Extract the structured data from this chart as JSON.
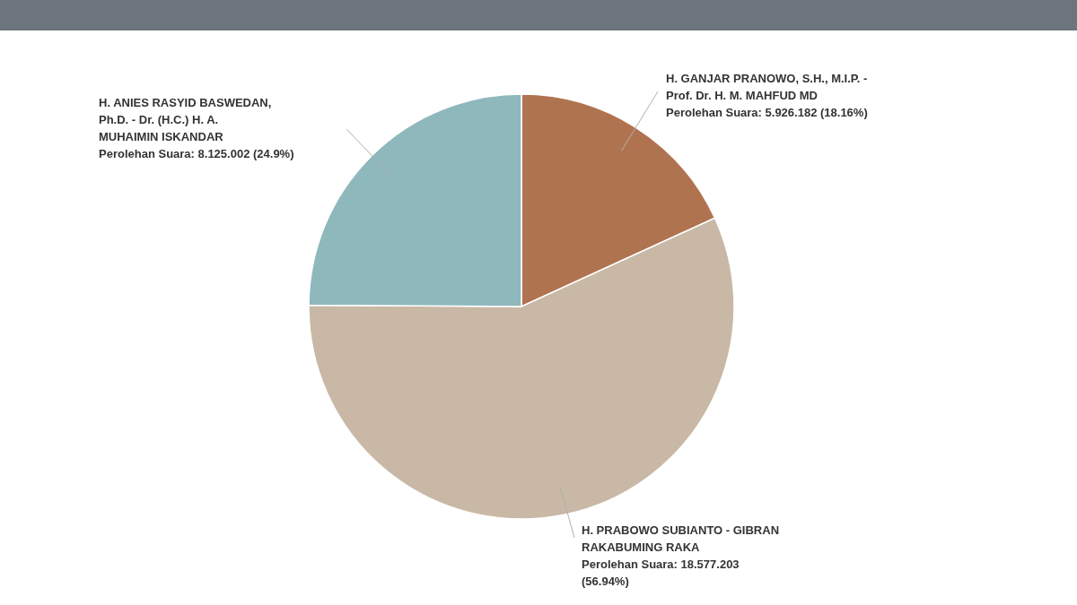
{
  "chart_data": {
    "type": "pie",
    "categories": [
      "H. GANJAR PRANOWO, S.H., M.I.P. - Prof. Dr. H. M. MAHFUD MD",
      "H. PRABOWO SUBIANTO - GIBRAN RAKABUMING RAKA",
      "H. ANIES RASYID BASWEDAN, Ph.D. - Dr. (H.C.) H. A. MUHAIMIN ISKANDAR"
    ],
    "values": [
      5926182,
      18577203,
      8125002
    ],
    "colors": [
      "#b07350",
      "#c8b8a5",
      "#8fb8bd"
    ],
    "value_labels": [
      "Perolehan Suara: 5.926.182 (18.16%)",
      "Perolehan Suara: 18.577.203 (56.94%)",
      "Perolehan Suara: 8.125.002 (24.9%)"
    ]
  }
}
